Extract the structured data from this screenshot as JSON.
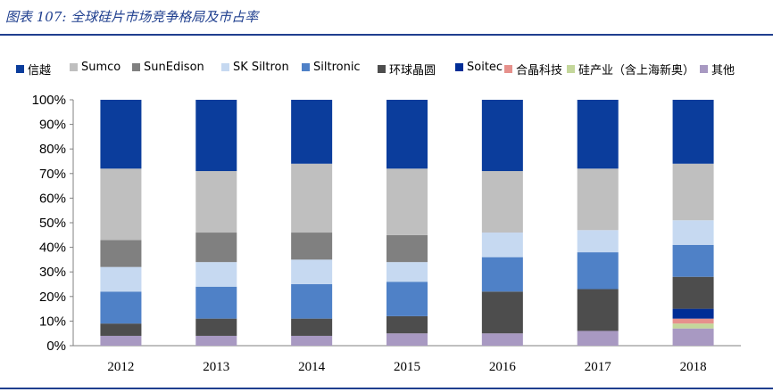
{
  "title": "图表 107:  全球硅片市场竞争格局及市占率",
  "colors": {
    "title": "#1f3f8f",
    "axis": "#808080"
  },
  "chart_data": {
    "type": "bar",
    "stacked": true,
    "categories": [
      "2012",
      "2013",
      "2014",
      "2015",
      "2016",
      "2017",
      "2018"
    ],
    "ylim": [
      0,
      100
    ],
    "yticks": [
      "0%",
      "10%",
      "20%",
      "30%",
      "40%",
      "50%",
      "60%",
      "70%",
      "80%",
      "90%",
      "100%"
    ],
    "legend_position": "top",
    "grid": false,
    "series": [
      {
        "name": "其他",
        "color": "#a899c2",
        "values": [
          4,
          4,
          4,
          5,
          5,
          6,
          7
        ]
      },
      {
        "name": "硅产业（含上海新奥）",
        "color": "#c4d79b",
        "values": [
          0,
          0,
          0,
          0,
          0,
          0,
          2
        ]
      },
      {
        "name": "合晶科技",
        "color": "#e6918c",
        "values": [
          0,
          0,
          0,
          0,
          0,
          0,
          2
        ]
      },
      {
        "name": "Soitec",
        "color": "#002d96",
        "values": [
          0,
          0,
          0,
          0,
          0,
          0,
          4
        ]
      },
      {
        "name": "环球晶圆",
        "color": "#4d4d4d",
        "values": [
          5,
          7,
          7,
          7,
          17,
          17,
          13
        ]
      },
      {
        "name": "Siltronic",
        "color": "#4f81c7",
        "values": [
          13,
          13,
          14,
          14,
          14,
          15,
          13
        ]
      },
      {
        "name": "SK Siltron",
        "color": "#c6d9f1",
        "values": [
          10,
          10,
          10,
          8,
          10,
          9,
          10
        ]
      },
      {
        "name": "SunEdison",
        "color": "#808080",
        "values": [
          11,
          12,
          11,
          11,
          0,
          0,
          0
        ]
      },
      {
        "name": "Sumco",
        "color": "#bfbfbf",
        "values": [
          29,
          25,
          28,
          27,
          25,
          25,
          23
        ]
      },
      {
        "name": "信越",
        "color": "#0b3d9c",
        "values": [
          28,
          29,
          26,
          28,
          29,
          28,
          26
        ]
      }
    ],
    "legend_order": [
      "信越",
      "Sumco",
      "SunEdison",
      "SK Siltron",
      "Siltronic",
      "环球晶圆",
      "Soitec",
      "合晶科技",
      "硅产业（含上海新奥）",
      "其他"
    ]
  }
}
